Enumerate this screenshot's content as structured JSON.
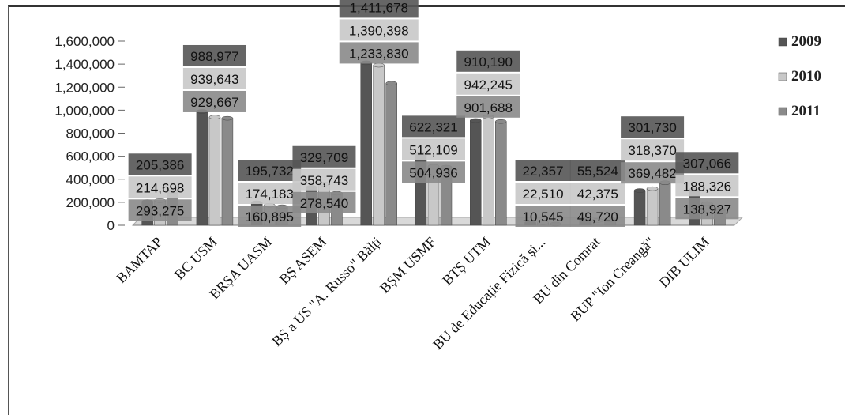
{
  "chart_data": {
    "type": "bar",
    "title": "",
    "xlabel": "",
    "ylabel": "",
    "ylim": [
      0,
      1600000
    ],
    "yticks": [
      "0",
      "200,000",
      "400,000",
      "600,000",
      "800,000",
      "1,000,000",
      "1,200,000",
      "1,400,000",
      "1,600,000"
    ],
    "grid": false,
    "legend_position": "right",
    "categories": [
      "BAMTAP",
      "BC USM",
      "BRȘA UASM",
      "BȘ ASEM",
      "BȘ a US \"A. Russo\" Bălți",
      "BȘM USMF",
      "BTȘ UTM",
      "BU de Educație Fizică și...",
      "BU din Comrat",
      "BUP \"Ion Creangă\"",
      "DIB ULIM"
    ],
    "series": [
      {
        "name": "2009",
        "color": "#555555",
        "values": [
          205386,
          988977,
          195732,
          329709,
          1411678,
          622321,
          910190,
          22357,
          55524,
          301730,
          307066
        ],
        "labels": [
          "205,386",
          "988,977",
          "195,732",
          "329,709",
          "1,411,678",
          "622,321",
          "910,190",
          "22,357",
          "55,524",
          "301,730",
          "307,066"
        ]
      },
      {
        "name": "2010",
        "color": "#c8c8c8",
        "values": [
          214698,
          939643,
          174183,
          358743,
          1390398,
          512109,
          942245,
          22510,
          42375,
          318370,
          188326
        ],
        "labels": [
          "214,698",
          "939,643",
          "174,183",
          "358,743",
          "1,390,398",
          "512,109",
          "942,245",
          "22,510",
          "42,375",
          "318,370",
          "188,326"
        ]
      },
      {
        "name": "2011",
        "color": "#8a8a8a",
        "values": [
          293275,
          929667,
          160895,
          278540,
          1233830,
          504936,
          901688,
          10545,
          49720,
          369482,
          138927
        ],
        "labels": [
          "293,275",
          "929,667",
          "160,895",
          "278,540",
          "1,233,830",
          "504,936",
          "901,688",
          "10,545",
          "49,720",
          "369,482",
          "138,927"
        ]
      }
    ]
  }
}
